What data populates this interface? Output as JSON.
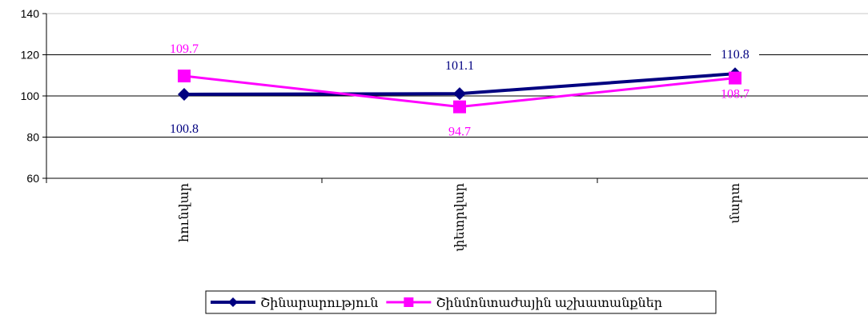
{
  "chart_data": {
    "type": "line",
    "categories": [
      "հունվար",
      "փետրվար",
      "մարտ"
    ],
    "ylim": [
      60,
      140
    ],
    "yticks": [
      60,
      80,
      100,
      120,
      140
    ],
    "grid": true,
    "legend_position": "bottom",
    "series": [
      {
        "name": "Շինարարություն",
        "values": [
          100.8,
          101.1,
          110.8
        ],
        "labels": [
          "100.8",
          "101.1",
          "110.8"
        ],
        "color": "#000080",
        "marker": "diamond"
      },
      {
        "name": "Շինմոնտաժային աշխատանքներ",
        "values": [
          109.7,
          94.7,
          108.7
        ],
        "labels": [
          "109.7",
          "94.7",
          "108.7"
        ],
        "color": "#FF00FF",
        "marker": "square"
      }
    ]
  }
}
